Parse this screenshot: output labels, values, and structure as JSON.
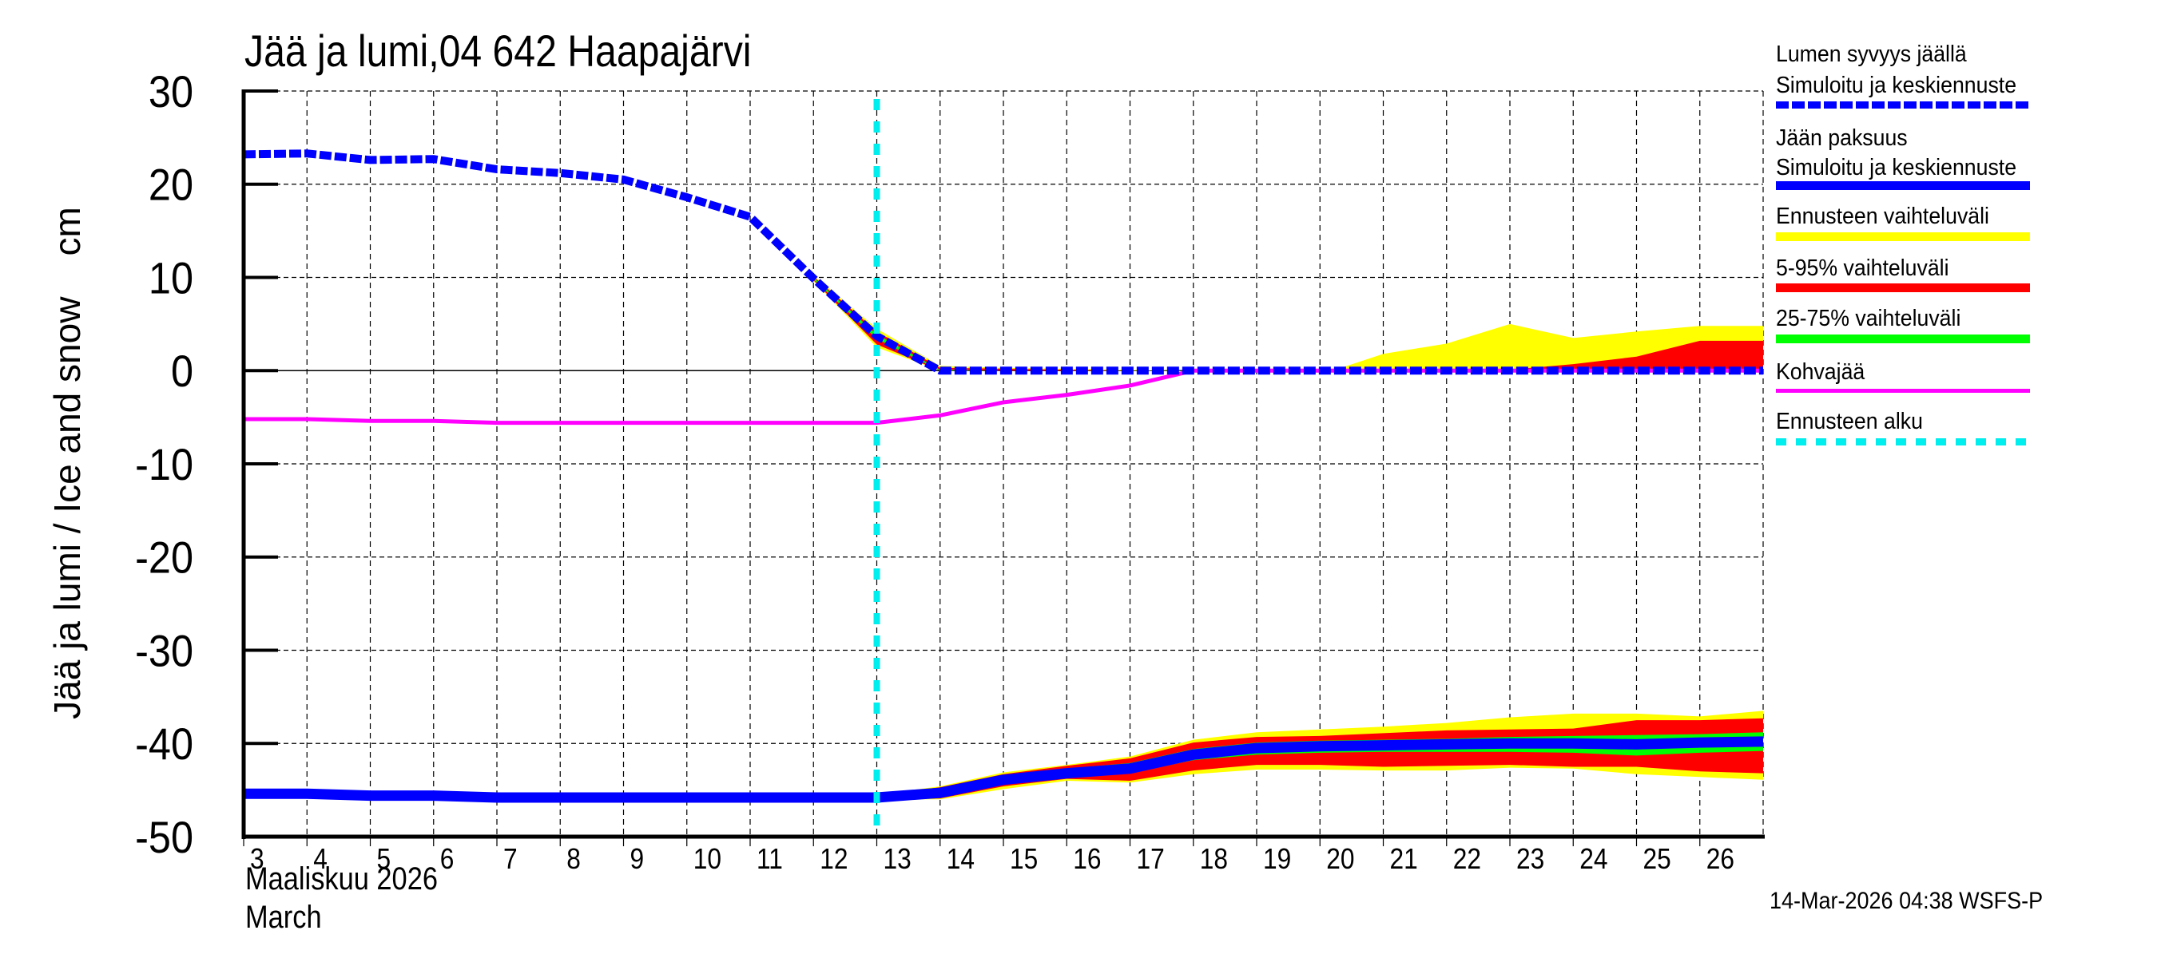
{
  "title": "Jää ja lumi,04 642 Haapajärvi",
  "footer": {
    "timestamp": "14-Mar-2026 04:38 WSFS-P"
  },
  "x_axis": {
    "month_label_fi": "Maaliskuu 2026",
    "month_label_en": "March"
  },
  "y_axis": {
    "label": "Jää ja lumi / Ice and snow    cm"
  },
  "legend": {
    "items": [
      {
        "label": "Lumen syvyys jäällä",
        "label2": "Simuloitu ja keskiennuste",
        "color": "#0000ff",
        "style": "dotted-thick"
      },
      {
        "label": "Jään paksuus",
        "label2": "Simuloitu ja keskiennuste",
        "color": "#0000ff",
        "style": "solid-thick"
      },
      {
        "label": "Ennusteen vaihteluväli",
        "color": "#ffff00",
        "style": "band"
      },
      {
        "label": "5-95% vaihteluväli",
        "color": "#ff0000",
        "style": "band"
      },
      {
        "label": "25-75% vaihteluväli",
        "color": "#00ff00",
        "style": "band"
      },
      {
        "label": "Kohvajää",
        "color": "#ff00ff",
        "style": "solid-thin"
      },
      {
        "label": "Ennusteen alku",
        "color": "#00eeee",
        "style": "dashed"
      }
    ]
  },
  "colors": {
    "snow": "#0000ff",
    "ice": "#0000ff",
    "range_full": "#ffff00",
    "range_5_95": "#ff0000",
    "range_25_75": "#00ff00",
    "slush_ice": "#ff00ff",
    "forecast_start": "#00eeee",
    "grid": "#000000"
  },
  "chart_data": {
    "type": "line",
    "title": "Jää ja lumi,04 642 Haapajärvi",
    "xlabel": "Maaliskuu 2026 / March",
    "ylabel": "Jää ja lumi / Ice and snow cm",
    "xlim": [
      3,
      27
    ],
    "ylim": [
      -50,
      30
    ],
    "yticks": [
      30,
      20,
      10,
      0,
      -10,
      -20,
      -30,
      -40,
      -50
    ],
    "xticks": [
      3,
      4,
      5,
      6,
      7,
      8,
      9,
      10,
      11,
      12,
      13,
      14,
      15,
      16,
      17,
      18,
      19,
      20,
      21,
      22,
      23,
      24,
      25,
      26
    ],
    "grid": true,
    "forecast_start_day": 13,
    "x": [
      3,
      4,
      5,
      6,
      7,
      8,
      9,
      10,
      11,
      12,
      13,
      14,
      15,
      16,
      17,
      18,
      19,
      20,
      21,
      22,
      23,
      24,
      25,
      26,
      27
    ],
    "series": [
      {
        "name": "Lumen syvyys jäällä (Simuloitu ja keskiennuste)",
        "values": [
          23.2,
          23.3,
          22.6,
          22.7,
          21.6,
          21.2,
          20.5,
          18.6,
          16.5,
          9.9,
          3.7,
          0,
          0,
          0,
          0,
          0,
          0,
          0,
          0,
          0,
          0,
          0,
          0,
          0,
          0
        ]
      },
      {
        "name": "Jään paksuus (Simuloitu ja keskiennuste)",
        "values": [
          -45.4,
          -45.4,
          -45.6,
          -45.6,
          -45.8,
          -45.8,
          -45.8,
          -45.8,
          -45.8,
          -45.8,
          -45.8,
          -45.3,
          -43.9,
          -43.2,
          -42.7,
          -41.2,
          -40.5,
          -40.3,
          -40.2,
          -40.1,
          -40.0,
          -40.0,
          -40.1,
          -39.9,
          -39.8
        ]
      },
      {
        "name": "Kohvajää",
        "values": [
          -5.2,
          -5.2,
          -5.4,
          -5.4,
          -5.6,
          -5.6,
          -5.6,
          -5.6,
          -5.6,
          -5.6,
          -5.6,
          -4.8,
          -3.4,
          -2.6,
          -1.6,
          0,
          0,
          0,
          0,
          0,
          0,
          0,
          0,
          0,
          0
        ]
      }
    ],
    "bands": {
      "snow": {
        "x": [
          12,
          13,
          14,
          15,
          16,
          17,
          18,
          19,
          20,
          20.2,
          21,
          22,
          23,
          24,
          25,
          26,
          27
        ],
        "full_upper": [
          10.2,
          4.5,
          0.5,
          0.3,
          0.2,
          0.1,
          0,
          0,
          0,
          0,
          1.8,
          2.9,
          5.0,
          3.5,
          4.2,
          4.8,
          4.8
        ],
        "full_lower": [
          9.6,
          2.5,
          0,
          0,
          0,
          0,
          0,
          0,
          0,
          0,
          0,
          0,
          0,
          0,
          0,
          0,
          0
        ],
        "p95_upper": [
          10.1,
          4.2,
          0.3,
          0.2,
          0.1,
          0,
          0,
          0,
          0,
          0,
          0,
          0,
          0.1,
          0.7,
          1.5,
          3.2,
          3.2
        ],
        "p5_lower": [
          9.7,
          2.8,
          0,
          0,
          0,
          0,
          0,
          0,
          0,
          0,
          0,
          0,
          0,
          0,
          0,
          0,
          0
        ],
        "p75_upper": [
          10.0,
          3.9,
          0.1,
          0,
          0,
          0,
          0,
          0,
          0,
          0,
          0,
          0,
          0,
          0,
          0,
          0,
          0
        ],
        "p25_lower": [
          9.8,
          3.4,
          0,
          0,
          0,
          0,
          0,
          0,
          0,
          0,
          0,
          0,
          0,
          0,
          0,
          0,
          0
        ]
      },
      "ice": {
        "x": [
          13,
          14,
          15,
          16,
          17,
          18,
          19,
          20,
          21,
          22,
          23,
          24,
          25,
          26,
          27
        ],
        "full_upper": [
          -45.5,
          -44.6,
          -43.1,
          -42.3,
          -41.4,
          -39.6,
          -38.8,
          -38.5,
          -38.2,
          -37.8,
          -37.2,
          -36.8,
          -36.8,
          -37.1,
          -36.5
        ],
        "p95_upper": [
          -45.6,
          -44.7,
          -43.3,
          -42.4,
          -41.6,
          -39.9,
          -39.3,
          -39.2,
          -38.9,
          -38.6,
          -38.5,
          -38.4,
          -37.5,
          -37.5,
          -37.3
        ],
        "p75_upper": [
          -45.7,
          -44.8,
          -43.5,
          -42.7,
          -42.1,
          -40.6,
          -39.9,
          -39.7,
          -39.6,
          -39.5,
          -39.3,
          -39.2,
          -39.1,
          -39.0,
          -38.8
        ],
        "p25_lower": [
          -45.9,
          -45.8,
          -44.3,
          -43.7,
          -43.2,
          -41.8,
          -41.2,
          -41.0,
          -40.9,
          -40.9,
          -40.9,
          -41.0,
          -41.3,
          -41.0,
          -40.8
        ],
        "p5_lower": [
          -46.0,
          -45.9,
          -44.6,
          -43.8,
          -44.0,
          -42.9,
          -42.3,
          -42.3,
          -42.5,
          -42.4,
          -42.3,
          -42.5,
          -42.5,
          -43.0,
          -43.2
        ],
        "full_lower": [
          -46.0,
          -46.0,
          -44.9,
          -44.0,
          -44.2,
          -43.3,
          -42.8,
          -42.8,
          -42.9,
          -42.9,
          -42.6,
          -42.7,
          -43.3,
          -43.6,
          -43.9
        ]
      }
    }
  }
}
